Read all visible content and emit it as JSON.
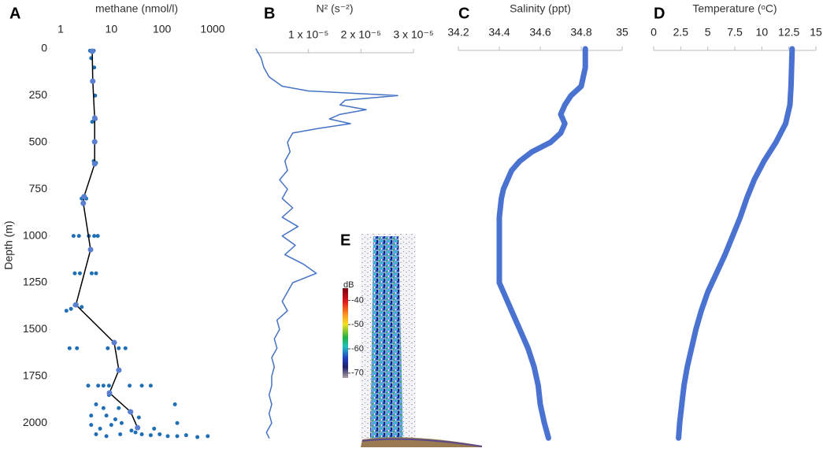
{
  "chart_data": [
    {
      "type": "profile",
      "label": "A",
      "xlabel": "methane (nmol/l)",
      "ylabel": "Depth (m)",
      "xscale": "log",
      "xlim": [
        1,
        1000
      ],
      "xticks": [
        1,
        10,
        100,
        1000
      ],
      "ylim": [
        0,
        2100
      ],
      "yticks": [
        0,
        250,
        500,
        750,
        1000,
        1250,
        1500,
        1750,
        2000
      ],
      "top_axis_line": false,
      "series": [
        {
          "mode": "markers",
          "color": "#1f6fb5",
          "x": [
            3.8,
            4.5,
            4,
            4.6,
            4.3,
            4.8,
            4.9,
            4.2,
            4.7,
            4.5,
            5,
            2.6,
            3.2,
            2.8,
            1.8,
            2.3,
            3.6,
            4.6,
            5.4,
            3.9,
            1.9,
            2.4,
            4.1,
            5,
            1.3,
            1.6,
            1.9,
            2.6,
            1.5,
            2.1,
            8.5,
            14,
            19,
            14,
            3.5,
            5.5,
            7,
            9,
            23,
            40,
            60,
            9,
            5,
            7,
            14,
            180,
            4,
            8,
            12,
            23,
            35,
            4,
            6,
            10,
            16,
            70,
            200,
            5,
            8,
            15,
            30,
            40,
            60,
            90,
            130,
            200,
            300,
            500,
            800,
            25
          ],
          "y": [
            10,
            10,
            50,
            100,
            175,
            250,
            375,
            390,
            500,
            600,
            610,
            800,
            800,
            830,
            1000,
            1000,
            1000,
            1000,
            1000,
            1075,
            1200,
            1200,
            1200,
            1200,
            1400,
            1390,
            1370,
            1380,
            1600,
            1600,
            1600,
            1600,
            1600,
            1720,
            1800,
            1800,
            1800,
            1800,
            1800,
            1800,
            1800,
            1850,
            1900,
            1920,
            1920,
            1900,
            1960,
            1960,
            1980,
            1940,
            1970,
            2010,
            2030,
            2010,
            2000,
            2030,
            2000,
            2060,
            2070,
            2060,
            2050,
            2060,
            2065,
            2060,
            2070,
            2070,
            2065,
            2075,
            2070,
            2040
          ]
        },
        {
          "mode": "lines+markers",
          "color": "#000000",
          "marker_color": "#5b7fd0",
          "x": [
            4.2,
            4.3,
            4.7,
            4.7,
            4.7,
            2.9,
            2.8,
            3.9,
            2.0,
            11.4,
            14.1,
            9.2,
            24,
            33
          ],
          "y": [
            13,
            173,
            370,
            497,
            615,
            790,
            825,
            1073,
            1368,
            1570,
            1717,
            1839,
            1940,
            2025
          ]
        }
      ]
    },
    {
      "type": "profile",
      "label": "B",
      "xlabel": "N² (s⁻²)",
      "xscale": "linear",
      "xlim": [
        0,
        3e-05
      ],
      "xticks": [
        {
          "value": 1e-05,
          "label": "1 x 10⁻⁵"
        },
        {
          "value": 2e-05,
          "label": "2 x 10⁻⁵"
        },
        {
          "value": 3e-05,
          "label": "3 x 10⁻⁵"
        }
      ],
      "ylim": [
        0,
        2100
      ],
      "top_axis_line": true,
      "series": [
        {
          "mode": "lines",
          "color": "#4472c4",
          "width": 1.5,
          "x": [
            0,
            1e-06,
            1.5e-06,
            2.5e-06,
            5e-06,
            1e-05,
            2.7e-05,
            1.7e-05,
            1.6e-05,
            2.1e-05,
            1.6e-05,
            1.4e-05,
            1.8e-05,
            1.2e-05,
            7e-06,
            6e-06,
            6.5e-06,
            5.5e-06,
            6e-06,
            4.5e-06,
            6e-06,
            5e-06,
            7e-06,
            5e-06,
            8e-06,
            5e-06,
            7.5e-06,
            5.5e-06,
            9e-06,
            1.15e-05,
            7e-06,
            6e-06,
            5e-06,
            6e-06,
            4e-06,
            4.5e-06,
            3.5e-06,
            4e-06,
            3e-06,
            3.5e-06,
            3e-06,
            3e-06,
            2.5e-06,
            3e-06,
            2.5e-06,
            3e-06,
            2e-06,
            2.5e-06
          ],
          "y": [
            0,
            50,
            100,
            150,
            200,
            225,
            250,
            275,
            300,
            325,
            350,
            375,
            400,
            425,
            450,
            500,
            550,
            600,
            650,
            700,
            750,
            800,
            850,
            900,
            950,
            1000,
            1050,
            1100,
            1150,
            1200,
            1250,
            1300,
            1350,
            1400,
            1450,
            1500,
            1550,
            1600,
            1650,
            1700,
            1750,
            1800,
            1850,
            1900,
            1950,
            2000,
            2050,
            2080
          ]
        }
      ]
    },
    {
      "type": "profile",
      "label": "C",
      "xlabel": "Salinity (ppt)",
      "xscale": "linear",
      "xlim": [
        34.2,
        35
      ],
      "xticks": [
        34.2,
        34.4,
        34.6,
        34.8,
        35
      ],
      "ylim": [
        0,
        2100
      ],
      "top_axis_line": true,
      "series": [
        {
          "mode": "lines",
          "color": "#4a72d0",
          "width": 7,
          "x": [
            34.82,
            34.82,
            34.8,
            34.75,
            34.72,
            34.7,
            34.72,
            34.7,
            34.65,
            34.56,
            34.5,
            34.46,
            34.44,
            34.42,
            34.41,
            34.4,
            34.4,
            34.4,
            34.4,
            34.4,
            34.42,
            34.46,
            34.5,
            34.54,
            34.57,
            34.59,
            34.6,
            34.62,
            34.64
          ],
          "y": [
            0,
            100,
            200,
            250,
            300,
            350,
            400,
            450,
            500,
            550,
            600,
            650,
            700,
            750,
            800,
            900,
            1000,
            1100,
            1200,
            1250,
            1300,
            1400,
            1500,
            1600,
            1700,
            1800,
            1900,
            2000,
            2080
          ]
        }
      ]
    },
    {
      "type": "profile",
      "label": "D",
      "xlabel": "Temperature (ᵒC)",
      "xscale": "linear",
      "xlim": [
        0,
        15
      ],
      "xticks": [
        0,
        2.5,
        5,
        7.5,
        10,
        12.5,
        15
      ],
      "ylim": [
        0,
        2100
      ],
      "top_axis_line": true,
      "series": [
        {
          "mode": "lines",
          "color": "#4a72d0",
          "width": 7,
          "x": [
            12.8,
            12.7,
            12.6,
            12.2,
            11.3,
            10.2,
            9.3,
            8.6,
            8,
            7.3,
            6.6,
            5.8,
            5,
            4.4,
            3.9,
            3.5,
            3.1,
            2.8,
            2.6,
            2.4,
            2.3
          ],
          "y": [
            0,
            200,
            300,
            400,
            500,
            600,
            700,
            800,
            900,
            1000,
            1100,
            1200,
            1300,
            1400,
            1500,
            1600,
            1700,
            1800,
            1900,
            2000,
            2080
          ]
        }
      ]
    },
    {
      "type": "echogram",
      "label": "E",
      "colorbar_title": "dB",
      "clim": [
        -72,
        -35
      ],
      "cticks": [
        -40,
        -50,
        -60,
        -70
      ]
    }
  ]
}
